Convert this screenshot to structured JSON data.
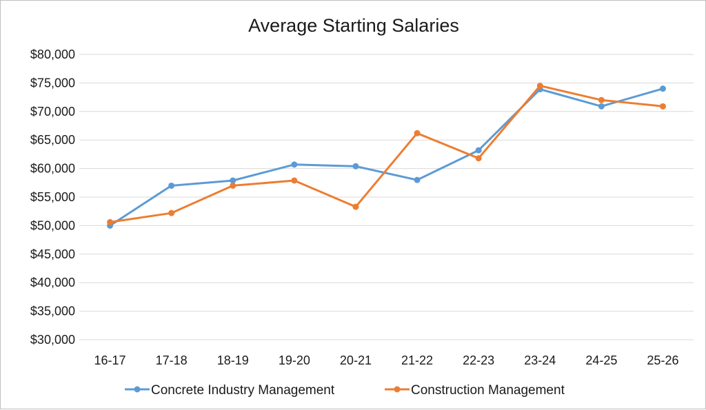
{
  "chart_data": {
    "type": "line",
    "title": "Average Starting Salaries",
    "xlabel": "",
    "ylabel": "",
    "categories": [
      "16-17",
      "17-18",
      "18-19",
      "19-20",
      "20-21",
      "21-22",
      "22-23",
      "23-24",
      "24-25",
      "25-26"
    ],
    "ylim": [
      30000,
      80000
    ],
    "yticks": [
      30000,
      35000,
      40000,
      45000,
      50000,
      55000,
      60000,
      65000,
      70000,
      75000,
      80000
    ],
    "ytick_labels": [
      "$30,000",
      "$35,000",
      "$40,000",
      "$45,000",
      "$50,000",
      "$55,000",
      "$60,000",
      "$65,000",
      "$70,000",
      "$75,000",
      "$80,000"
    ],
    "grid": true,
    "legend": "bottom",
    "series": [
      {
        "name": "Concrete Industry Management",
        "color": "#5b9bd5",
        "values": [
          50000,
          57000,
          57900,
          60700,
          60400,
          58000,
          63200,
          73900,
          70900,
          74000
        ]
      },
      {
        "name": "Construction Management",
        "color": "#ed7d31",
        "values": [
          50600,
          52200,
          57000,
          57900,
          53300,
          66200,
          61800,
          74500,
          72000,
          70900
        ]
      }
    ]
  }
}
